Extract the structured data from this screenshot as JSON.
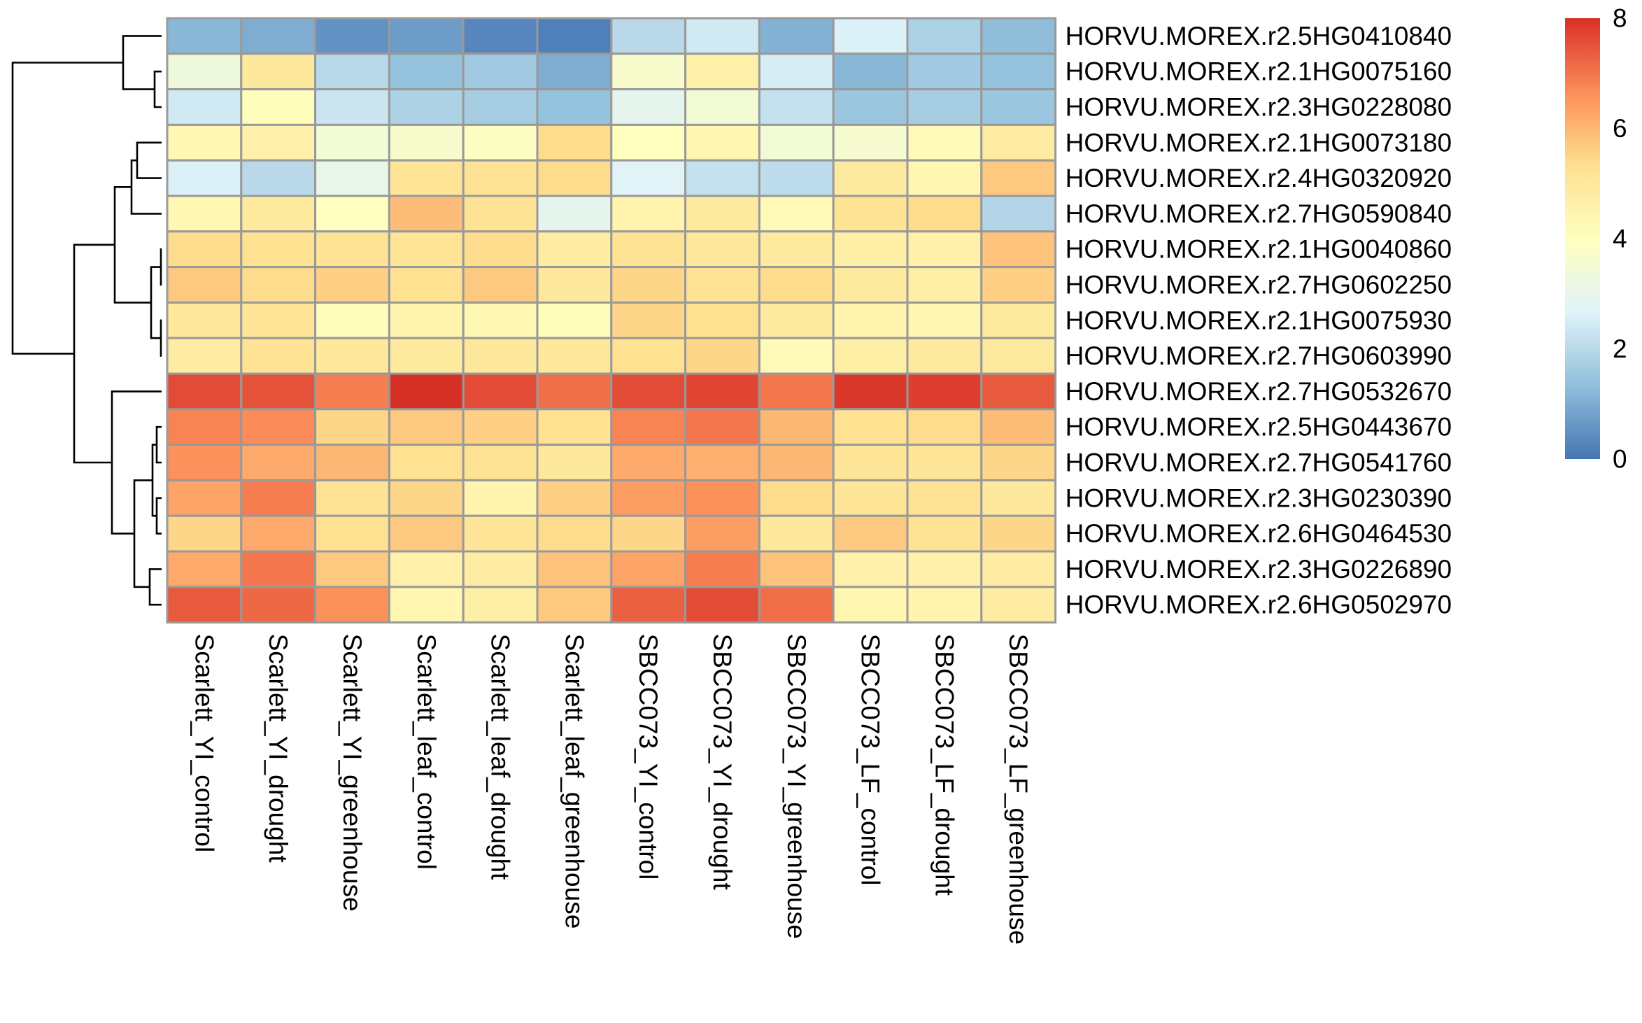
{
  "chart_data": {
    "type": "heatmap",
    "title": "",
    "xlabel": "",
    "ylabel": "",
    "color_scale": {
      "range": [
        0,
        8
      ],
      "ticks": [
        0,
        2,
        4,
        6,
        8
      ],
      "tick_labels": [
        "0",
        "2",
        "4",
        "6",
        "8"
      ],
      "colors": [
        "#4575B4",
        "#91BFDB",
        "#E0F3F8",
        "#FFFFBF",
        "#FEE090",
        "#FC8D59",
        "#D73027"
      ],
      "legend_position": "right"
    },
    "dendrogram": "rows",
    "columns": [
      "Scarlett_YI_control",
      "Scarlett_YI_drought",
      "Scarlett_YI_greenhouse",
      "Scarlett_leaf_control",
      "Scarlett_leaf_drought",
      "Scarlett_leaf_greenhouse",
      "SBCC073_YI_control",
      "SBCC073_YI_drought",
      "SBCC073_YI_greenhouse",
      "SBCC073_LF_control",
      "SBCC073_LF_drought",
      "SBCC073_LF_greenhouse"
    ],
    "rows": [
      "HORVU.MOREX.r2.5HG0410840",
      "HORVU.MOREX.r2.1HG0075160",
      "HORVU.MOREX.r2.3HG0228080",
      "HORVU.MOREX.r2.1HG0073180",
      "HORVU.MOREX.r2.4HG0320920",
      "HORVU.MOREX.r2.7HG0590840",
      "HORVU.MOREX.r2.1HG0040860",
      "HORVU.MOREX.r2.7HG0602250",
      "HORVU.MOREX.r2.1HG0075930",
      "HORVU.MOREX.r2.7HG0603990",
      "HORVU.MOREX.r2.7HG0532670",
      "HORVU.MOREX.r2.5HG0443670",
      "HORVU.MOREX.r2.7HG0541760",
      "HORVU.MOREX.r2.3HG0230390",
      "HORVU.MOREX.r2.6HG0464530",
      "HORVU.MOREX.r2.3HG0226890",
      "HORVU.MOREX.r2.6HG0502970"
    ],
    "values": [
      [
        1.2,
        1.0,
        0.5,
        0.7,
        0.3,
        0.2,
        2.0,
        2.4,
        1.1,
        2.6,
        1.8,
        1.3
      ],
      [
        3.3,
        5.0,
        2.0,
        1.4,
        1.6,
        1.0,
        3.7,
        4.6,
        2.5,
        1.2,
        1.6,
        1.4
      ],
      [
        2.4,
        4.1,
        2.3,
        1.8,
        1.7,
        1.4,
        2.9,
        3.5,
        2.2,
        1.5,
        1.7,
        1.5
      ],
      [
        4.3,
        4.6,
        3.5,
        3.7,
        3.9,
        5.4,
        4.0,
        4.4,
        3.5,
        3.6,
        4.2,
        4.8
      ],
      [
        2.6,
        2.0,
        3.0,
        5.1,
        5.2,
        5.4,
        2.7,
        2.2,
        2.1,
        4.9,
        4.4,
        5.7
      ],
      [
        4.3,
        4.9,
        4.0,
        5.9,
        5.2,
        2.9,
        4.5,
        4.9,
        4.2,
        5.2,
        5.4,
        1.9
      ],
      [
        5.4,
        5.3,
        5.2,
        5.1,
        5.4,
        4.8,
        5.2,
        5.0,
        4.9,
        4.7,
        4.6,
        5.8
      ],
      [
        5.7,
        5.4,
        5.6,
        5.3,
        5.7,
        5.0,
        5.5,
        5.2,
        5.4,
        4.9,
        4.7,
        5.6
      ],
      [
        5.0,
        5.1,
        4.1,
        4.5,
        4.3,
        4.1,
        5.5,
        5.3,
        4.9,
        4.5,
        4.4,
        4.9
      ],
      [
        4.8,
        5.2,
        5.0,
        4.9,
        5.0,
        5.0,
        5.3,
        5.5,
        4.2,
        4.7,
        4.9,
        4.9
      ],
      [
        7.6,
        7.5,
        6.9,
        8.0,
        7.6,
        7.1,
        7.6,
        7.7,
        7.0,
        7.9,
        7.8,
        7.4
      ],
      [
        6.8,
        6.7,
        5.5,
        5.7,
        5.6,
        5.3,
        6.8,
        7.0,
        6.0,
        5.3,
        5.4,
        5.9
      ],
      [
        6.6,
        6.2,
        6.0,
        5.3,
        5.2,
        5.0,
        6.2,
        6.1,
        6.0,
        5.1,
        5.1,
        5.5
      ],
      [
        6.3,
        6.9,
        5.2,
        5.5,
        4.5,
        5.6,
        6.4,
        6.6,
        5.4,
        5.1,
        5.2,
        5.0
      ],
      [
        5.5,
        6.2,
        5.3,
        5.7,
        5.1,
        5.4,
        5.5,
        6.4,
        5.0,
        5.7,
        5.2,
        5.5
      ],
      [
        6.2,
        7.0,
        5.7,
        4.6,
        4.8,
        5.8,
        6.3,
        6.9,
        5.8,
        4.6,
        4.6,
        4.8
      ],
      [
        7.4,
        7.2,
        6.6,
        4.4,
        4.7,
        5.7,
        7.3,
        7.6,
        7.1,
        4.4,
        4.5,
        4.8
      ]
    ]
  }
}
